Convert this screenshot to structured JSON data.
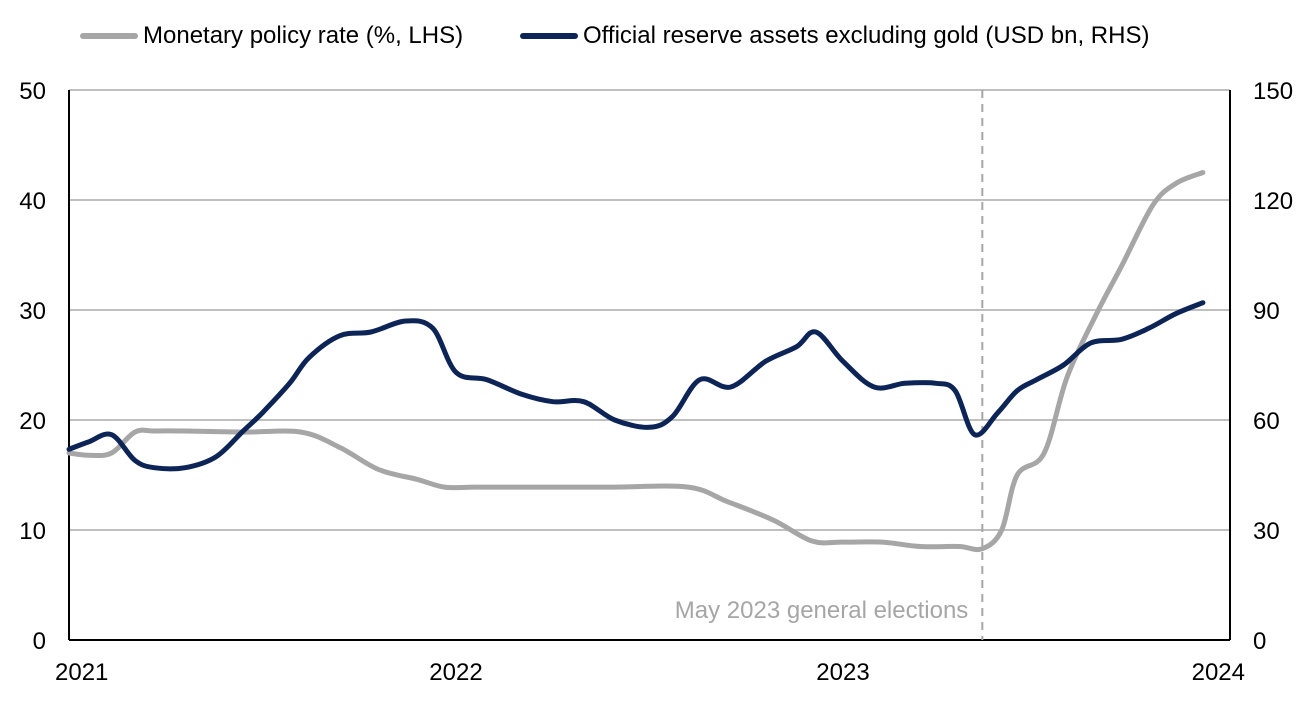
{
  "chart_data": {
    "type": "line",
    "title": "",
    "xlabel": "",
    "ylabel_left": "",
    "ylabel_right": "",
    "x_ticks": [
      "2021",
      "2022",
      "2023",
      "2024"
    ],
    "x_range": [
      2021.0,
      2024.0
    ],
    "y_left": {
      "range": [
        0,
        50
      ],
      "ticks": [
        0,
        10,
        20,
        30,
        40,
        50
      ]
    },
    "y_right": {
      "range": [
        0,
        150
      ],
      "ticks": [
        0,
        30,
        60,
        90,
        120,
        150
      ]
    },
    "grid": true,
    "legend_placement": "top",
    "series": [
      {
        "name": "Monetary policy rate (%, LHS)",
        "axis": "left",
        "color": "#a6a6a6",
        "x": [
          2021.0,
          2021.05,
          2021.11,
          2021.17,
          2021.22,
          2021.3,
          2021.45,
          2021.6,
          2021.7,
          2021.8,
          2021.9,
          2021.97,
          2022.05,
          2022.2,
          2022.4,
          2022.6,
          2022.7,
          2022.82,
          2022.92,
          2023.0,
          2023.1,
          2023.2,
          2023.3,
          2023.36,
          2023.41,
          2023.45,
          2023.52,
          2023.58,
          2023.66,
          2023.72,
          2023.8,
          2023.86,
          2023.93
        ],
        "values": [
          17,
          16.8,
          17,
          18.9,
          19,
          19,
          18.9,
          18.9,
          17.5,
          15.5,
          14.6,
          13.9,
          13.9,
          13.9,
          13.9,
          13.9,
          12.6,
          10.9,
          9,
          8.9,
          8.9,
          8.5,
          8.5,
          8.3,
          10,
          15,
          17,
          24,
          30,
          34,
          39.5,
          41.5,
          42.5
        ]
      },
      {
        "name": "Official reserve assets excluding gold (USD bn, RHS)",
        "axis": "right",
        "color": "#0d2456",
        "x": [
          2021.0,
          2021.05,
          2021.11,
          2021.17,
          2021.22,
          2021.3,
          2021.38,
          2021.45,
          2021.5,
          2021.57,
          2021.62,
          2021.7,
          2021.78,
          2021.87,
          2021.94,
          2022.0,
          2022.08,
          2022.17,
          2022.25,
          2022.33,
          2022.41,
          2022.5,
          2022.56,
          2022.63,
          2022.71,
          2022.8,
          2022.88,
          2022.93,
          2023.0,
          2023.08,
          2023.16,
          2023.24,
          2023.29,
          2023.34,
          2023.4,
          2023.45,
          2023.5,
          2023.57,
          2023.64,
          2023.72,
          2023.79,
          2023.86,
          2023.93
        ],
        "values": [
          52,
          54,
          56,
          49,
          47,
          47,
          50,
          57,
          62,
          70,
          77,
          83,
          84,
          87,
          85,
          73,
          71,
          67,
          65,
          65,
          60,
          58,
          61,
          71,
          69,
          76,
          80,
          84,
          76,
          69,
          70,
          70,
          68,
          56,
          62,
          68,
          71,
          75,
          81,
          82,
          85,
          89,
          92
        ]
      }
    ],
    "annotations": [
      {
        "text": "May 2023 general elections",
        "x": 2023.36,
        "style": "dashed-vertical-line"
      }
    ]
  }
}
